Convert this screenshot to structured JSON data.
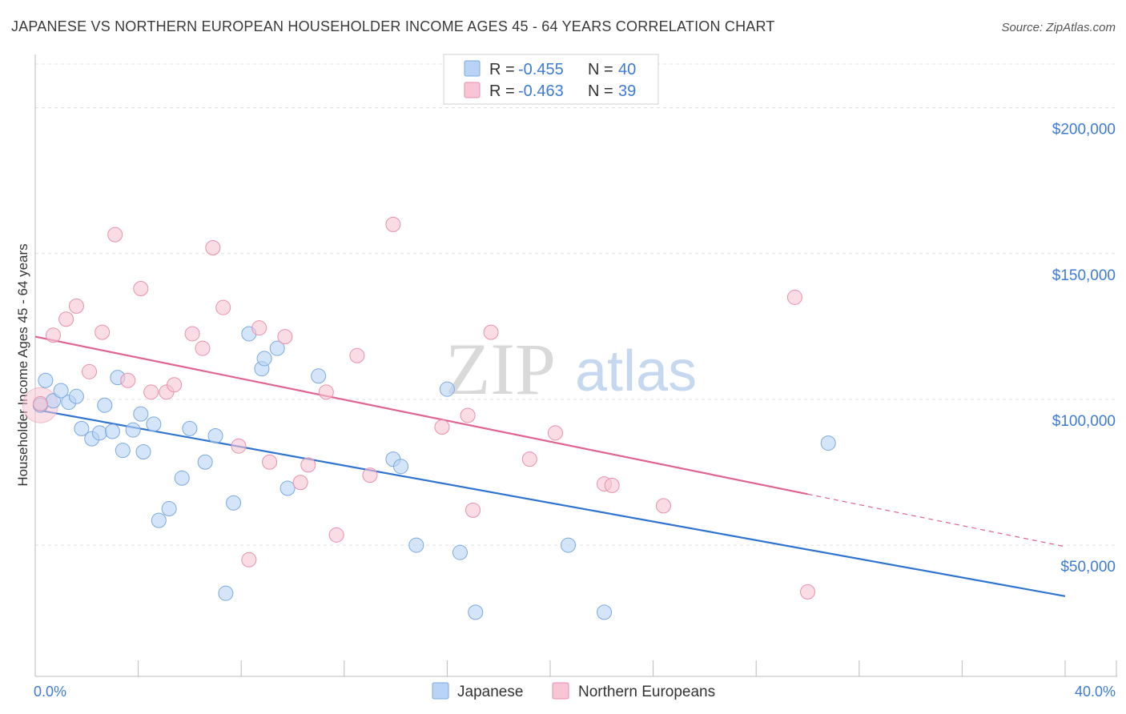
{
  "title": "JAPANESE VS NORTHERN EUROPEAN HOUSEHOLDER INCOME AGES 45 - 64 YEARS CORRELATION CHART",
  "source": "Source: ZipAtlas.com",
  "watermark": {
    "zip": "ZIP",
    "atlas": "atlas"
  },
  "colors": {
    "japanese_fill": "#b8d3f5",
    "japanese_stroke": "#7aa9e0",
    "japanese_line": "#2f74d0",
    "northern_fill": "#f7c5d4",
    "northern_stroke": "#ea90ad",
    "northern_line": "#e0648f",
    "tick_text": "#3d7bd6",
    "grid": "#e0e0e0"
  },
  "legend": {
    "rows": [
      {
        "r_label": "R = ",
        "r_value": "-0.455",
        "n_label": "N = ",
        "n_value": "40"
      },
      {
        "r_label": "R = ",
        "r_value": "-0.463",
        "n_label": "N = ",
        "n_value": "39"
      }
    ]
  },
  "bottom_legend": [
    "Japanese",
    "Northern Europeans"
  ],
  "chart_data": {
    "type": "scatter",
    "title": "JAPANESE VS NORTHERN EUROPEAN HOUSEHOLDER INCOME AGES 45 - 64 YEARS CORRELATION CHART",
    "xlabel": "",
    "ylabel": "Householder Income Ages 45 - 64 years",
    "xlim": [
      0,
      40
    ],
    "ylim": [
      5000,
      215000
    ],
    "x_tick_labels": [
      "0.0%",
      "40.0%"
    ],
    "y_ticks": [
      50000,
      100000,
      150000,
      200000
    ],
    "y_tick_labels": [
      "$50,000",
      "$100,000",
      "$150,000",
      "$200,000"
    ],
    "series": [
      {
        "name": "Japanese",
        "points": [
          [
            0.2,
            98000
          ],
          [
            0.4,
            106500
          ],
          [
            0.7,
            99500
          ],
          [
            1.0,
            103000
          ],
          [
            1.3,
            99000
          ],
          [
            1.6,
            101000
          ],
          [
            1.8,
            90000
          ],
          [
            2.2,
            86500
          ],
          [
            2.5,
            88500
          ],
          [
            2.7,
            98000
          ],
          [
            3.0,
            89000
          ],
          [
            3.2,
            107500
          ],
          [
            3.4,
            82500
          ],
          [
            3.8,
            89500
          ],
          [
            4.1,
            95000
          ],
          [
            4.2,
            82000
          ],
          [
            4.6,
            91500
          ],
          [
            4.8,
            58500
          ],
          [
            5.2,
            62500
          ],
          [
            5.7,
            73000
          ],
          [
            6.0,
            90000
          ],
          [
            6.6,
            78500
          ],
          [
            7.0,
            87500
          ],
          [
            7.4,
            33500
          ],
          [
            7.7,
            64500
          ],
          [
            8.3,
            122500
          ],
          [
            8.8,
            110500
          ],
          [
            8.9,
            114000
          ],
          [
            9.4,
            117500
          ],
          [
            9.8,
            69500
          ],
          [
            11.0,
            108000
          ],
          [
            13.9,
            79500
          ],
          [
            14.2,
            77000
          ],
          [
            14.8,
            50000
          ],
          [
            16.0,
            103500
          ],
          [
            16.5,
            47500
          ],
          [
            17.1,
            27000
          ],
          [
            20.7,
            50000
          ],
          [
            22.1,
            27000
          ],
          [
            30.8,
            85000
          ]
        ]
      },
      {
        "name": "Northern Europeans",
        "points": [
          [
            0.2,
            98500
          ],
          [
            0.7,
            122000
          ],
          [
            1.2,
            127500
          ],
          [
            1.6,
            132000
          ],
          [
            2.1,
            109500
          ],
          [
            2.6,
            123000
          ],
          [
            3.1,
            156500
          ],
          [
            3.6,
            106500
          ],
          [
            4.1,
            138000
          ],
          [
            4.5,
            102500
          ],
          [
            5.1,
            102500
          ],
          [
            5.4,
            105000
          ],
          [
            6.1,
            122500
          ],
          [
            6.5,
            117500
          ],
          [
            6.9,
            152000
          ],
          [
            7.3,
            131500
          ],
          [
            7.9,
            84000
          ],
          [
            8.3,
            45000
          ],
          [
            8.7,
            124500
          ],
          [
            9.1,
            78500
          ],
          [
            9.7,
            121500
          ],
          [
            10.3,
            71500
          ],
          [
            10.6,
            77500
          ],
          [
            11.3,
            102500
          ],
          [
            11.7,
            53500
          ],
          [
            12.5,
            115000
          ],
          [
            13.0,
            74000
          ],
          [
            13.9,
            160000
          ],
          [
            15.8,
            90500
          ],
          [
            16.8,
            94500
          ],
          [
            17.0,
            62000
          ],
          [
            17.7,
            123000
          ],
          [
            19.2,
            79500
          ],
          [
            20.2,
            88500
          ],
          [
            22.1,
            71000
          ],
          [
            22.4,
            70500
          ],
          [
            24.4,
            63500
          ],
          [
            29.5,
            135000
          ],
          [
            30.0,
            34000
          ]
        ]
      }
    ],
    "trend_lines": [
      {
        "series": "Japanese",
        "x": [
          0,
          40
        ],
        "y": [
          96500,
          32500
        ],
        "style": "solid"
      },
      {
        "series": "Northern Europeans",
        "x": [
          0,
          30.0
        ],
        "y": [
          121500,
          67500
        ],
        "style": "solid"
      },
      {
        "series": "Northern Europeans",
        "x": [
          30.0,
          40
        ],
        "y": [
          67500,
          49500
        ],
        "style": "dashed"
      }
    ]
  }
}
